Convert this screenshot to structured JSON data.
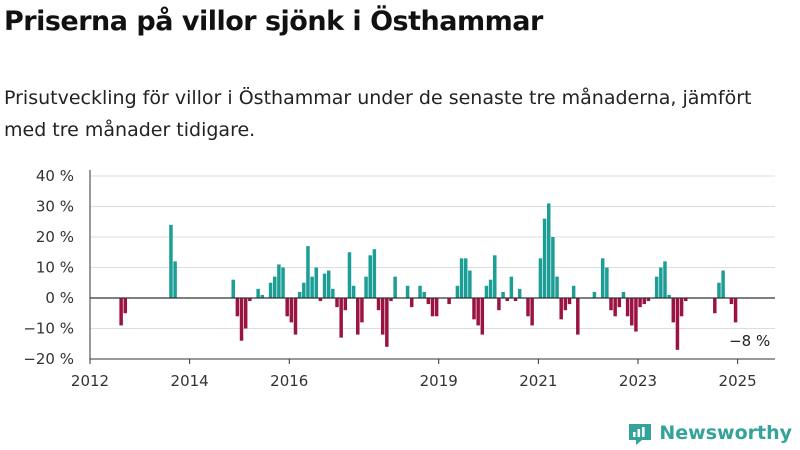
{
  "title": "Priserna på villor sjönk i Östhammar",
  "subtitle": "Prisutveckling för villor i Östhammar under de senaste tre månaderna, jämfört med tre månader tidigare.",
  "brand": {
    "name": "Newsworthy",
    "icon": "newsworthy-logo-icon"
  },
  "colors": {
    "positive": "#1b9e95",
    "negative": "#9b1343",
    "axis": "#333333",
    "grid": "#dddddd",
    "text": "#333333"
  },
  "chart_data": {
    "type": "bar",
    "unit": "%",
    "ylim": [
      -20,
      40
    ],
    "y_ticks": [
      -20,
      -10,
      0,
      10,
      20,
      30,
      40
    ],
    "y_tick_labels": [
      "−20 %",
      "−10 %",
      "0 %",
      "10 %",
      "20 %",
      "30 %",
      "40 %"
    ],
    "xlim": [
      "2012-01",
      "2025-10"
    ],
    "x_ticks": [
      "2012",
      "2014",
      "2016",
      "2019",
      "2021",
      "2023",
      "2025"
    ],
    "grid": true,
    "annotation": {
      "text": "−8 %",
      "x": "2025-01"
    },
    "series": [
      {
        "x": [
          "2012-08",
          "2012-09",
          "2013-08",
          "2013-09",
          "2014-11",
          "2014-12",
          "2015-01",
          "2015-02",
          "2015-03",
          "2015-05",
          "2015-06",
          "2015-08",
          "2015-09",
          "2015-10",
          "2015-11",
          "2015-12",
          "2016-01",
          "2016-02",
          "2016-03",
          "2016-04",
          "2016-05",
          "2016-06",
          "2016-07",
          "2016-08",
          "2016-09",
          "2016-10",
          "2016-11",
          "2016-12",
          "2017-01",
          "2017-02",
          "2017-03",
          "2017-04",
          "2017-05",
          "2017-06",
          "2017-07",
          "2017-08",
          "2017-09",
          "2017-10",
          "2017-11",
          "2017-12",
          "2018-01",
          "2018-02",
          "2018-03",
          "2018-05",
          "2018-06",
          "2018-08",
          "2018-09",
          "2018-10",
          "2018-11",
          "2018-12",
          "2019-01",
          "2019-02",
          "2019-03",
          "2019-05",
          "2019-06",
          "2019-07",
          "2019-08",
          "2019-09",
          "2019-10",
          "2019-11",
          "2019-12",
          "2020-01",
          "2020-02",
          "2020-03",
          "2020-04",
          "2020-05",
          "2020-06",
          "2020-07",
          "2020-08",
          "2020-10",
          "2020-11",
          "2020-12",
          "2021-01",
          "2021-02",
          "2021-03",
          "2021-04",
          "2021-05",
          "2021-06",
          "2021-07",
          "2021-08",
          "2021-09",
          "2021-10",
          "2021-11",
          "2022-02",
          "2022-04",
          "2022-05",
          "2022-06",
          "2022-07",
          "2022-08",
          "2022-09",
          "2022-10",
          "2022-11",
          "2022-12",
          "2023-01",
          "2023-02",
          "2023-03",
          "2023-05",
          "2023-06",
          "2023-07",
          "2023-08",
          "2023-09",
          "2023-10",
          "2023-11",
          "2023-12",
          "2024-07",
          "2024-08",
          "2024-09",
          "2024-11",
          "2024-12"
        ],
        "values": [
          -9,
          -5,
          24,
          12,
          6,
          -6,
          -14,
          -10,
          -1,
          3,
          1,
          5,
          7,
          11,
          10,
          -6,
          -8,
          -12,
          2,
          5,
          17,
          7,
          10,
          -1,
          8,
          9,
          3,
          -3,
          -13,
          -4,
          15,
          4,
          -12,
          -8,
          7,
          14,
          16,
          -4,
          -12,
          -16,
          -1,
          7,
          0,
          4,
          -3,
          4,
          2,
          -2,
          -6,
          -6,
          0,
          0,
          -2,
          4,
          13,
          13,
          9,
          -7,
          -9,
          -12,
          4,
          6,
          14,
          -4,
          2,
          -1,
          7,
          -1,
          3,
          -6,
          -9,
          0,
          13,
          26,
          31,
          20,
          7,
          -7,
          -4,
          -2,
          4,
          -12,
          0,
          2,
          13,
          10,
          -4,
          -6,
          -3,
          2,
          -6,
          -9,
          -11,
          -3,
          -2,
          -1,
          7,
          10,
          12,
          1,
          -8,
          -17,
          -6,
          -1,
          -5,
          5,
          9,
          -2,
          -8
        ]
      }
    ]
  }
}
